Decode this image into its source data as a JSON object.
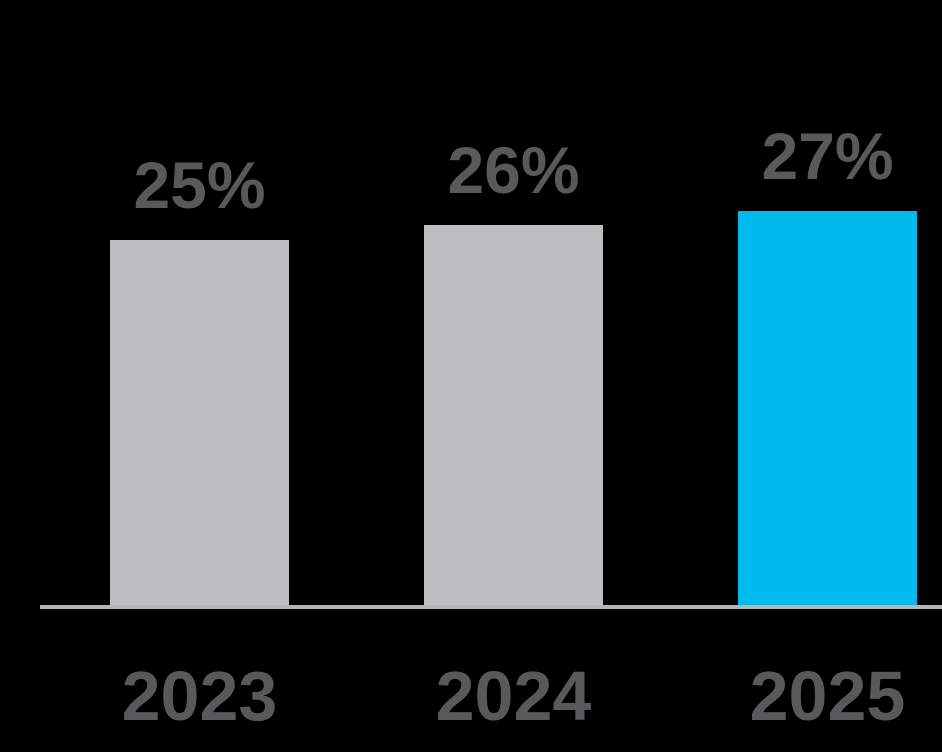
{
  "chart_data": {
    "type": "bar",
    "categories": [
      "2023",
      "2024",
      "2025"
    ],
    "values": [
      25,
      26,
      27
    ],
    "value_labels": [
      "25%",
      "26%",
      "27%"
    ],
    "unit": "%",
    "title": "",
    "xlabel": "",
    "ylabel": "",
    "baseline": 0,
    "grid": false,
    "legend": false,
    "axis_line_visible": true,
    "highlight_index": 2
  },
  "colors": {
    "background": "#000000",
    "bar_default": "#bcbec0",
    "bar_highlight": "#00b9ed",
    "label_text": "#58595b",
    "axis_line": "#b4b6b8"
  }
}
